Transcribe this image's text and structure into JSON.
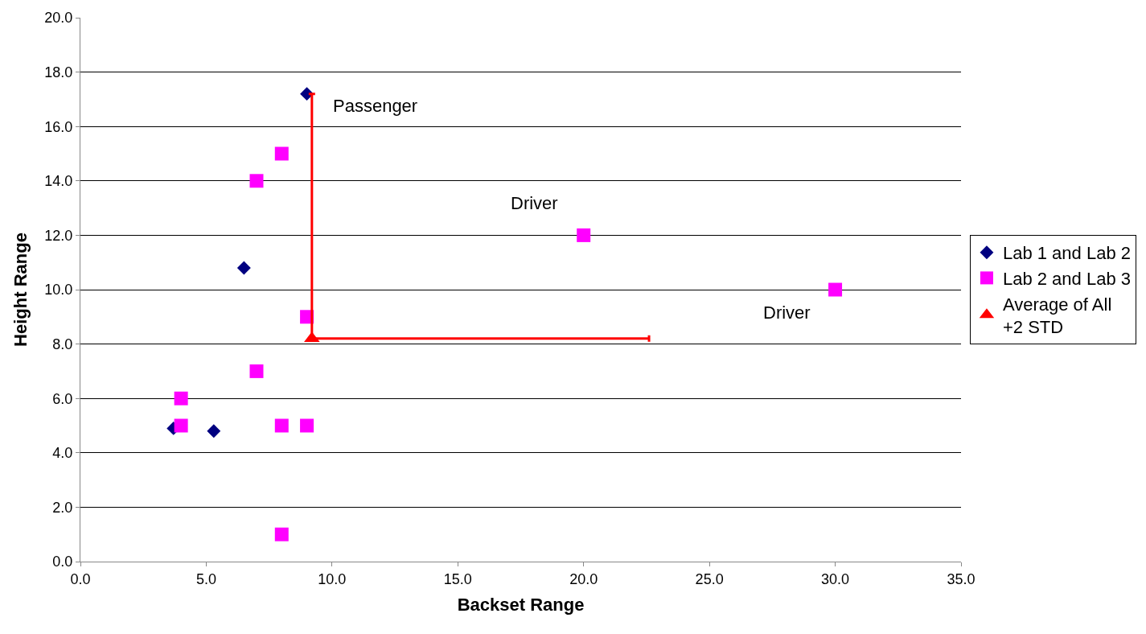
{
  "chart_data": {
    "type": "scatter",
    "xlabel": "Backset Range",
    "ylabel": "Height Range",
    "xlim": [
      0,
      35
    ],
    "xticks": [
      {
        "value": 0,
        "label": "0.0"
      },
      {
        "value": 5,
        "label": "5.0"
      },
      {
        "value": 10,
        "label": "10.0"
      },
      {
        "value": 15,
        "label": "15.0"
      },
      {
        "value": 20,
        "label": "20.0"
      },
      {
        "value": 25,
        "label": "25.0"
      },
      {
        "value": 30,
        "label": "30.0"
      },
      {
        "value": 35,
        "label": "35.0"
      }
    ],
    "ylim": [
      0,
      20
    ],
    "yticks": [
      {
        "value": 0,
        "label": "0.0"
      },
      {
        "value": 2,
        "label": "2.0"
      },
      {
        "value": 4,
        "label": "4.0"
      },
      {
        "value": 6,
        "label": "6.0"
      },
      {
        "value": 8,
        "label": "8.0"
      },
      {
        "value": 10,
        "label": "10.0"
      },
      {
        "value": 12,
        "label": "12.0"
      },
      {
        "value": 14,
        "label": "14.0"
      },
      {
        "value": 16,
        "label": "16.0"
      },
      {
        "value": 18,
        "label": "18.0"
      },
      {
        "value": 20,
        "label": "20.0"
      }
    ],
    "grid": "y",
    "legend": "right",
    "series": [
      {
        "name": "Lab 1 and Lab 2",
        "color": "#000080",
        "marker": "diamond",
        "x": [
          3.7,
          5.3,
          6.5,
          9.0
        ],
        "values": [
          4.9,
          4.8,
          10.8,
          17.2
        ]
      },
      {
        "name": "Lab 2 and Lab 3",
        "color": "#ff00ff",
        "marker": "square",
        "x": [
          4,
          4,
          7,
          7,
          8,
          8,
          8,
          9,
          9,
          20,
          30
        ],
        "values": [
          6,
          5,
          14,
          7,
          15,
          5,
          1,
          9,
          5,
          12,
          10
        ]
      },
      {
        "name": "Average of All\n+2 STD",
        "color": "#ff0000",
        "marker": "triangle",
        "x": [
          9.2
        ],
        "values": [
          8.2
        ],
        "errors": [
          [
            8.2,
            17.2
          ]
        ],
        "xerrors": [
          [
            9.2,
            22.6
          ]
        ]
      }
    ],
    "annotations": [
      {
        "text": "Passenger",
        "x": 9.0,
        "y": 17.2
      },
      {
        "text": "Driver",
        "x": 20,
        "y": 12
      },
      {
        "text": "Driver",
        "x": 30,
        "y": 10
      }
    ]
  }
}
